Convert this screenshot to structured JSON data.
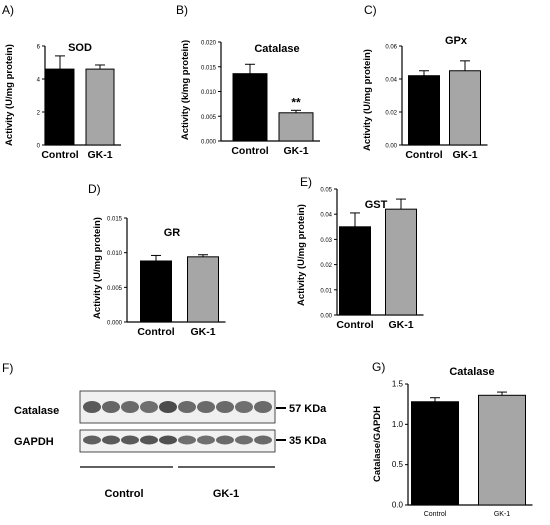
{
  "colors": {
    "control": "#000000",
    "gk1": "#a6a6a6",
    "axis": "#000000"
  },
  "chart_data": [
    {
      "panel": "A)",
      "type": "bar",
      "title": "SOD",
      "ylabel": "Activity (U/mg protein)",
      "categories": [
        "Control",
        "GK-1"
      ],
      "values": [
        4.6,
        4.6
      ],
      "errors": [
        0.8,
        0.25
      ],
      "ylim": [
        0,
        6
      ],
      "yticks": [
        "0",
        "2",
        "4",
        "6"
      ],
      "ytick_values": [
        0,
        2,
        4,
        6
      ],
      "annotations": []
    },
    {
      "panel": "B)",
      "type": "bar",
      "title": "Catalase",
      "ylabel": "Activity (k/mg protein)",
      "categories": [
        "Control",
        "GK-1"
      ],
      "values": [
        0.0136,
        0.0057
      ],
      "errors": [
        0.0019,
        0.0005
      ],
      "ylim": [
        0,
        0.02
      ],
      "yticks": [
        "0.000",
        "0.005",
        "0.010",
        "0.015",
        "0.020"
      ],
      "ytick_values": [
        0,
        0.005,
        0.01,
        0.015,
        0.02
      ],
      "annotations": [
        "**"
      ]
    },
    {
      "panel": "C)",
      "type": "bar",
      "title": "GPx",
      "ylabel": "Activity (U/mg protein)",
      "categories": [
        "Control",
        "GK-1"
      ],
      "values": [
        0.042,
        0.045
      ],
      "errors": [
        0.003,
        0.006
      ],
      "ylim": [
        0,
        0.06
      ],
      "yticks": [
        "0.00",
        "0.02",
        "0.04",
        "0.06"
      ],
      "ytick_values": [
        0,
        0.02,
        0.04,
        0.06
      ],
      "annotations": []
    },
    {
      "panel": "D)",
      "type": "bar",
      "title": "GR",
      "ylabel": "Activity (U/mg protein)",
      "categories": [
        "Control",
        "GK-1"
      ],
      "values": [
        0.0088,
        0.0094
      ],
      "errors": [
        0.0008,
        0.0003
      ],
      "ylim": [
        0,
        0.015
      ],
      "yticks": [
        "0.000",
        "0.005",
        "0.010",
        "0.015"
      ],
      "ytick_values": [
        0,
        0.005,
        0.01,
        0.015
      ],
      "annotations": []
    },
    {
      "panel": "E)",
      "type": "bar",
      "title": "GST",
      "ylabel": "Activity (U/mg protein)",
      "categories": [
        "Control",
        "GK-1"
      ],
      "values": [
        0.035,
        0.042
      ],
      "errors": [
        0.0055,
        0.004
      ],
      "ylim": [
        0,
        0.05
      ],
      "yticks": [
        "0.00",
        "0.01",
        "0.02",
        "0.03",
        "0.04",
        "0.05"
      ],
      "ytick_values": [
        0,
        0.01,
        0.02,
        0.03,
        0.04,
        0.05
      ],
      "annotations": []
    },
    {
      "panel": "G)",
      "type": "bar",
      "title": "Catalase",
      "ylabel": "Catalase/GAPDH",
      "categories": [
        "Control",
        "GK-1"
      ],
      "values": [
        1.28,
        1.36
      ],
      "errors": [
        0.05,
        0.04
      ],
      "ylim": [
        0,
        1.5
      ],
      "yticks": [
        "0.0",
        "0.5",
        "1.0",
        "1.5"
      ],
      "ytick_values": [
        0,
        0.5,
        1.0,
        1.5
      ],
      "annotations": []
    }
  ],
  "blot": {
    "panel": "F)",
    "rows": [
      {
        "label": "Catalase",
        "marker": "57 KDa",
        "band_intensity": [
          0.8,
          0.7,
          0.65,
          0.6,
          0.95,
          0.65,
          0.65,
          0.65,
          0.6,
          0.65
        ]
      },
      {
        "label": "GAPDH",
        "marker": "35 KDa",
        "band_intensity": [
          0.75,
          0.8,
          0.8,
          0.85,
          0.9,
          0.6,
          0.6,
          0.65,
          0.6,
          0.65
        ]
      }
    ],
    "groups": [
      "Control",
      "GK-1"
    ]
  }
}
